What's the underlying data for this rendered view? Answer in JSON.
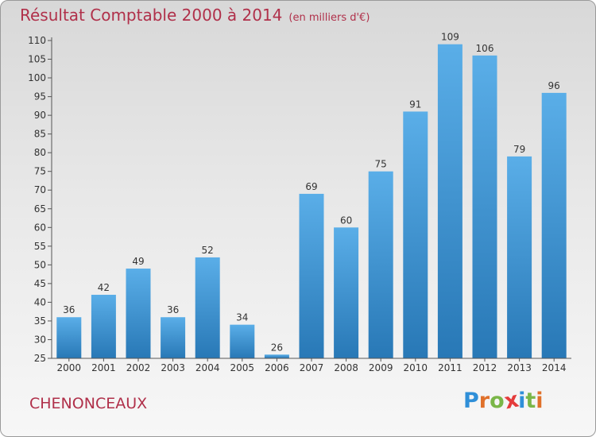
{
  "header": {
    "title": "Résultat Comptable 2000 à 2014",
    "subtitle": "(en milliers d'€)"
  },
  "footer": {
    "commune": "CHENONCEAUX",
    "logo_letters": [
      "P",
      "r",
      "o",
      "x",
      "i",
      "t",
      "i"
    ]
  },
  "colors": {
    "bar_top": "#5aaee8",
    "bar_bottom": "#2878b6",
    "title": "#b0304a",
    "logo": [
      "#2f8fd8",
      "#e0702a",
      "#7ab648",
      "#e43b3b",
      "#2f8fd8",
      "#7ab648",
      "#e0702a"
    ]
  },
  "chart_data": {
    "type": "bar",
    "title": "Résultat Comptable 2000 à 2014",
    "xlabel": "",
    "ylabel": "",
    "categories": [
      "2000",
      "2001",
      "2002",
      "2003",
      "2004",
      "2005",
      "2006",
      "2007",
      "2008",
      "2009",
      "2010",
      "2011",
      "2012",
      "2013",
      "2014"
    ],
    "values": [
      36,
      42,
      49,
      36,
      52,
      34,
      26,
      69,
      60,
      75,
      91,
      109,
      106,
      79,
      96
    ],
    "ylim": [
      25,
      110
    ],
    "yticks": [
      25,
      30,
      35,
      40,
      45,
      50,
      55,
      60,
      65,
      70,
      75,
      80,
      85,
      90,
      95,
      100,
      105,
      110
    ],
    "grid": false
  }
}
